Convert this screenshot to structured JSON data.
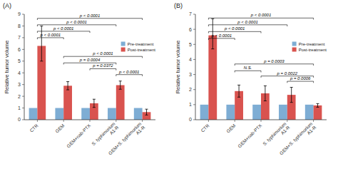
{
  "chart_data": [
    {
      "type": "bar",
      "title": "(A)",
      "ylabel": "Relative tumor volume",
      "categories": [
        "CTR",
        "GEM",
        "GEM+nab-PTX",
        "S. typhimurium\nA1-R",
        "GEM+S. typhimurium\nA1-R"
      ],
      "series": [
        {
          "name": "Pre-treatment",
          "color": "#7eadd4",
          "values": [
            1.0,
            1.0,
            1.0,
            1.0,
            1.0
          ]
        },
        {
          "name": "Post-treatment",
          "color": "#d9534f",
          "values": [
            6.3,
            2.9,
            1.4,
            2.95,
            0.65
          ],
          "errors_lo": [
            1.3,
            0.35,
            0.35,
            0.35,
            0.25
          ],
          "errors_hi": [
            1.7,
            0.35,
            0.35,
            0.35,
            0.25
          ]
        }
      ],
      "ylim": [
        0,
        9
      ],
      "yticks": [
        0,
        1,
        2,
        3,
        4,
        5,
        6,
        7,
        8,
        9
      ],
      "grid": false,
      "legend": "upper right",
      "annotations": [
        {
          "x1": 0,
          "x2": 4,
          "y": 8.65,
          "text": "p < 0.0001"
        },
        {
          "x1": 0,
          "x2": 3,
          "y": 8.1,
          "text": "p < 0.0001"
        },
        {
          "x1": 0,
          "x2": 2,
          "y": 7.55,
          "text": "p < 0.0001"
        },
        {
          "x1": 0,
          "x2": 1,
          "y": 7.0,
          "text": "p < 0.0001"
        },
        {
          "x1": 1,
          "x2": 4,
          "y": 5.4,
          "text": "p < 0.0001"
        },
        {
          "x1": 1,
          "x2": 3,
          "y": 4.85,
          "text": "p = 0.0004"
        },
        {
          "x1": 2,
          "x2": 3,
          "y": 4.35,
          "text": "p = 0.0372"
        },
        {
          "x1": 3,
          "x2": 4,
          "y": 3.85,
          "text": "p < 0.0001"
        }
      ]
    },
    {
      "type": "bar",
      "title": "(B)",
      "ylabel": "Relative tumor volume",
      "categories": [
        "CTR",
        "GEM",
        "GEM+nab-PTX",
        "S. typhimurium\nA1-R",
        "GEM+S. typhimurium\nA1-R"
      ],
      "series": [
        {
          "name": "Pre-treatment",
          "color": "#7eadd4",
          "values": [
            1.0,
            1.0,
            1.0,
            1.0,
            1.0
          ]
        },
        {
          "name": "Post-treatment",
          "color": "#d9534f",
          "values": [
            5.6,
            1.9,
            1.75,
            1.65,
            0.95
          ],
          "errors_lo": [
            0.9,
            0.4,
            0.5,
            0.5,
            0.12
          ],
          "errors_hi": [
            1.1,
            0.4,
            0.5,
            0.5,
            0.12
          ]
        }
      ],
      "ylim": [
        0,
        7
      ],
      "yticks": [
        0,
        1,
        2,
        3,
        4,
        5,
        6,
        7
      ],
      "grid": false,
      "legend": "upper right",
      "annotations": [
        {
          "x1": 0,
          "x2": 4,
          "y": 6.75,
          "text": "p < 0.0001"
        },
        {
          "x1": 0,
          "x2": 3,
          "y": 6.3,
          "text": "p < 0.0001"
        },
        {
          "x1": 0,
          "x2": 2,
          "y": 5.85,
          "text": "p < 0.0001"
        },
        {
          "x1": 0,
          "x2": 1,
          "y": 5.4,
          "text": "p < 0.0001"
        },
        {
          "x1": 1,
          "x2": 4,
          "y": 3.7,
          "text": "p = 0.0003"
        },
        {
          "x1": 1,
          "x2": 2,
          "y": 3.25,
          "text": "N.S."
        },
        {
          "x1": 2,
          "x2": 4,
          "y": 2.9,
          "text": "p = 0.0022"
        },
        {
          "x1": 3,
          "x2": 4,
          "y": 2.55,
          "text": "p = 0.0006"
        }
      ]
    }
  ]
}
